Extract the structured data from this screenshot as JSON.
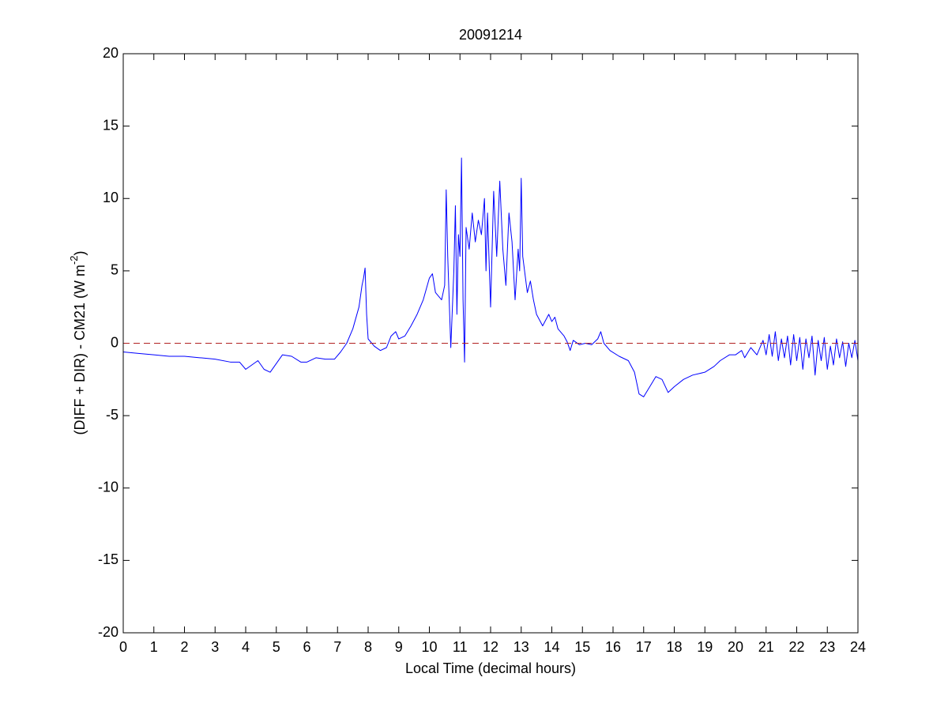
{
  "chart_data": {
    "type": "line",
    "title": "20091214",
    "xlabel": "Local Time (decimal hours)",
    "ylabel": {
      "text": "(DIFF + DIR) - CM21 (W m",
      "superscript": "-2",
      "suffix": ")"
    },
    "xlim": [
      0,
      24
    ],
    "ylim": [
      -20,
      20
    ],
    "xticks": [
      0,
      1,
      2,
      3,
      4,
      5,
      6,
      7,
      8,
      9,
      10,
      11,
      12,
      13,
      14,
      15,
      16,
      17,
      18,
      19,
      20,
      21,
      22,
      23,
      24
    ],
    "yticks": [
      -20,
      -15,
      -10,
      -5,
      0,
      5,
      10,
      15,
      20
    ],
    "grid": false,
    "reference_line": {
      "value": 0,
      "color": "#b22222",
      "dashed": true
    },
    "series": [
      {
        "color": "#0000ff",
        "x": [
          0,
          0.5,
          1,
          1.5,
          2,
          2.5,
          3,
          3.5,
          3.8,
          4.0,
          4.2,
          4.4,
          4.6,
          4.8,
          5.0,
          5.2,
          5.5,
          5.8,
          6.0,
          6.3,
          6.6,
          6.9,
          7.1,
          7.3,
          7.5,
          7.7,
          7.8,
          7.85,
          7.9,
          7.95,
          8.0,
          8.2,
          8.4,
          8.6,
          8.75,
          8.9,
          9.0,
          9.2,
          9.4,
          9.6,
          9.8,
          10.0,
          10.1,
          10.2,
          10.4,
          10.5,
          10.55,
          10.6,
          10.7,
          10.8,
          10.85,
          10.9,
          10.95,
          11.0,
          11.05,
          11.1,
          11.15,
          11.2,
          11.3,
          11.4,
          11.5,
          11.6,
          11.7,
          11.8,
          11.85,
          11.9,
          12.0,
          12.1,
          12.2,
          12.3,
          12.4,
          12.5,
          12.6,
          12.7,
          12.8,
          12.9,
          12.95,
          13.0,
          13.05,
          13.2,
          13.3,
          13.4,
          13.5,
          13.7,
          13.9,
          14.0,
          14.1,
          14.2,
          14.4,
          14.5,
          14.6,
          14.7,
          14.9,
          15.1,
          15.3,
          15.5,
          15.6,
          15.7,
          15.9,
          16.2,
          16.5,
          16.7,
          16.85,
          17.0,
          17.2,
          17.4,
          17.6,
          17.8,
          18.0,
          18.3,
          18.6,
          19.0,
          19.3,
          19.5,
          19.8,
          20.0,
          20.2,
          20.3,
          20.5,
          20.7,
          20.9,
          21.0,
          21.1,
          21.2,
          21.3,
          21.4,
          21.5,
          21.6,
          21.7,
          21.8,
          21.9,
          22.0,
          22.1,
          22.2,
          22.3,
          22.4,
          22.5,
          22.6,
          22.7,
          22.8,
          22.9,
          23.0,
          23.1,
          23.2,
          23.3,
          23.4,
          23.5,
          23.6,
          23.7,
          23.8,
          23.9,
          24.0
        ],
        "values": [
          -0.6,
          -0.7,
          -0.8,
          -0.9,
          -0.9,
          -1.0,
          -1.1,
          -1.3,
          -1.3,
          -1.8,
          -1.5,
          -1.2,
          -1.8,
          -2.0,
          -1.4,
          -0.8,
          -0.9,
          -1.3,
          -1.3,
          -1.0,
          -1.1,
          -1.1,
          -0.6,
          0.0,
          1.0,
          2.5,
          4.0,
          4.5,
          5.2,
          2.0,
          0.3,
          -0.2,
          -0.5,
          -0.3,
          0.5,
          0.8,
          0.3,
          0.5,
          1.2,
          2.0,
          3.0,
          4.5,
          4.8,
          3.5,
          3.0,
          4.0,
          10.6,
          6.0,
          -0.3,
          5.0,
          9.5,
          2.0,
          7.5,
          6.0,
          12.8,
          3.0,
          -1.3,
          8.0,
          6.5,
          9.0,
          7.0,
          8.5,
          7.5,
          10.0,
          5.0,
          9.0,
          2.5,
          10.5,
          6.0,
          11.2,
          6.5,
          4.0,
          9.0,
          7.0,
          3.0,
          6.5,
          5.0,
          11.4,
          6.0,
          3.5,
          4.3,
          3.0,
          2.0,
          1.2,
          2.0,
          1.5,
          1.8,
          1.0,
          0.5,
          0.1,
          -0.5,
          0.2,
          -0.1,
          0.0,
          -0.1,
          0.3,
          0.8,
          0.0,
          -0.5,
          -0.9,
          -1.2,
          -2.0,
          -3.5,
          -3.7,
          -3.0,
          -2.3,
          -2.5,
          -3.4,
          -3.0,
          -2.5,
          -2.2,
          -2.0,
          -1.6,
          -1.2,
          -0.8,
          -0.8,
          -0.5,
          -1.0,
          -0.3,
          -0.8,
          0.2,
          -0.8,
          0.6,
          -0.9,
          0.8,
          -1.2,
          0.3,
          -1.0,
          0.5,
          -1.5,
          0.6,
          -1.2,
          0.4,
          -1.8,
          0.3,
          -1.0,
          0.5,
          -2.2,
          0.2,
          -1.2,
          0.4,
          -1.8,
          -0.2,
          -1.5,
          0.3,
          -1.0,
          0.1,
          -1.6,
          0.0,
          -1.0,
          0.2,
          -1.2
        ]
      }
    ]
  }
}
